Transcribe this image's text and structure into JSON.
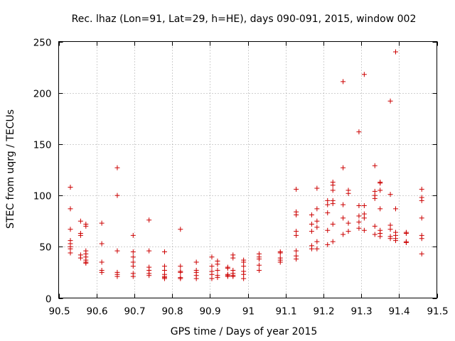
{
  "chart_data": {
    "type": "scatter",
    "title": "Rec. lhaz (Lon=91, Lat=29, h=HE), days 090-091, 2015, window 002",
    "xlabel": "GPS time / Days of year 2015",
    "ylabel": "STEC from uqrg / TECUs",
    "xlim": [
      90.5,
      91.5
    ],
    "ylim": [
      0,
      250
    ],
    "xticks": [
      90.5,
      90.6,
      90.7,
      90.8,
      90.9,
      91,
      91.1,
      91.2,
      91.3,
      91.4,
      91.5
    ],
    "xtick_labels": [
      "90.5",
      "90.6",
      "90.7",
      "90.8",
      "90.9",
      "91",
      "91.1",
      "91.2",
      "91.3",
      "91.4",
      "91.5"
    ],
    "yticks": [
      0,
      50,
      100,
      150,
      200,
      250
    ],
    "ytick_labels": [
      "0",
      "50",
      "100",
      "150",
      "200",
      "250"
    ],
    "grid": true,
    "marker": "+",
    "color": "#cc0000",
    "points": [
      [
        90.531,
        108
      ],
      [
        90.531,
        87
      ],
      [
        90.531,
        67
      ],
      [
        90.531,
        56
      ],
      [
        90.531,
        53
      ],
      [
        90.531,
        50
      ],
      [
        90.531,
        48
      ],
      [
        90.531,
        44
      ],
      [
        90.558,
        75
      ],
      [
        90.558,
        63
      ],
      [
        90.558,
        61
      ],
      [
        90.558,
        42
      ],
      [
        90.558,
        39
      ],
      [
        90.572,
        72
      ],
      [
        90.572,
        70
      ],
      [
        90.572,
        46
      ],
      [
        90.572,
        43
      ],
      [
        90.572,
        40
      ],
      [
        90.572,
        37
      ],
      [
        90.572,
        35
      ],
      [
        90.572,
        34
      ],
      [
        90.614,
        73
      ],
      [
        90.614,
        53
      ],
      [
        90.614,
        35
      ],
      [
        90.614,
        27
      ],
      [
        90.614,
        25
      ],
      [
        90.655,
        127
      ],
      [
        90.655,
        100
      ],
      [
        90.655,
        46
      ],
      [
        90.655,
        25
      ],
      [
        90.655,
        23
      ],
      [
        90.655,
        21
      ],
      [
        90.697,
        61
      ],
      [
        90.697,
        45
      ],
      [
        90.697,
        40
      ],
      [
        90.697,
        35
      ],
      [
        90.697,
        31
      ],
      [
        90.697,
        24
      ],
      [
        90.697,
        21
      ],
      [
        90.739,
        76
      ],
      [
        90.739,
        46
      ],
      [
        90.739,
        30
      ],
      [
        90.739,
        27
      ],
      [
        90.739,
        24
      ],
      [
        90.739,
        22
      ],
      [
        90.78,
        45
      ],
      [
        90.78,
        31
      ],
      [
        90.78,
        27
      ],
      [
        90.78,
        23
      ],
      [
        90.78,
        21
      ],
      [
        90.78,
        20
      ],
      [
        90.78,
        19
      ],
      [
        90.822,
        67
      ],
      [
        90.822,
        31
      ],
      [
        90.822,
        26
      ],
      [
        90.822,
        25
      ],
      [
        90.822,
        20
      ],
      [
        90.822,
        19
      ],
      [
        90.864,
        35
      ],
      [
        90.864,
        27
      ],
      [
        90.864,
        25
      ],
      [
        90.864,
        22
      ],
      [
        90.864,
        19
      ],
      [
        90.905,
        40
      ],
      [
        90.905,
        31
      ],
      [
        90.905,
        26
      ],
      [
        90.905,
        23
      ],
      [
        90.905,
        19
      ],
      [
        90.92,
        36
      ],
      [
        90.92,
        33
      ],
      [
        90.92,
        27
      ],
      [
        90.92,
        22
      ],
      [
        90.92,
        20
      ],
      [
        90.947,
        30
      ],
      [
        90.947,
        29
      ],
      [
        90.947,
        23
      ],
      [
        90.947,
        22
      ],
      [
        90.947,
        21
      ],
      [
        90.961,
        42
      ],
      [
        90.961,
        39
      ],
      [
        90.961,
        27
      ],
      [
        90.961,
        24
      ],
      [
        90.961,
        22
      ],
      [
        90.961,
        21
      ],
      [
        90.989,
        37
      ],
      [
        90.989,
        35
      ],
      [
        90.989,
        31
      ],
      [
        90.989,
        26
      ],
      [
        90.989,
        23
      ],
      [
        90.989,
        19
      ],
      [
        91.03,
        43
      ],
      [
        91.03,
        40
      ],
      [
        91.03,
        38
      ],
      [
        91.03,
        32
      ],
      [
        91.03,
        27
      ],
      [
        91.086,
        45
      ],
      [
        91.086,
        44
      ],
      [
        91.086,
        39
      ],
      [
        91.086,
        37
      ],
      [
        91.086,
        35
      ],
      [
        91.128,
        106
      ],
      [
        91.128,
        84
      ],
      [
        91.128,
        81
      ],
      [
        91.128,
        65
      ],
      [
        91.128,
        61
      ],
      [
        91.128,
        46
      ],
      [
        91.128,
        41
      ],
      [
        91.128,
        38
      ],
      [
        91.169,
        81
      ],
      [
        91.169,
        72
      ],
      [
        91.169,
        65
      ],
      [
        91.169,
        51
      ],
      [
        91.169,
        48
      ],
      [
        91.183,
        107
      ],
      [
        91.183,
        87
      ],
      [
        91.183,
        75
      ],
      [
        91.183,
        69
      ],
      [
        91.183,
        55
      ],
      [
        91.183,
        48
      ],
      [
        91.211,
        95
      ],
      [
        91.211,
        91
      ],
      [
        91.211,
        83
      ],
      [
        91.211,
        66
      ],
      [
        91.211,
        52
      ],
      [
        91.225,
        113
      ],
      [
        91.225,
        110
      ],
      [
        91.225,
        105
      ],
      [
        91.225,
        95
      ],
      [
        91.225,
        92
      ],
      [
        91.225,
        72
      ],
      [
        91.225,
        55
      ],
      [
        91.252,
        211
      ],
      [
        91.252,
        127
      ],
      [
        91.252,
        91
      ],
      [
        91.252,
        78
      ],
      [
        91.252,
        62
      ],
      [
        91.266,
        105
      ],
      [
        91.266,
        102
      ],
      [
        91.266,
        73
      ],
      [
        91.266,
        65
      ],
      [
        91.294,
        162
      ],
      [
        91.294,
        90
      ],
      [
        91.294,
        80
      ],
      [
        91.294,
        74
      ],
      [
        91.294,
        68
      ],
      [
        91.308,
        218
      ],
      [
        91.308,
        90
      ],
      [
        91.308,
        82
      ],
      [
        91.308,
        78
      ],
      [
        91.308,
        66
      ],
      [
        91.336,
        129
      ],
      [
        91.336,
        104
      ],
      [
        91.336,
        100
      ],
      [
        91.336,
        97
      ],
      [
        91.336,
        70
      ],
      [
        91.336,
        62
      ],
      [
        91.35,
        113
      ],
      [
        91.35,
        112
      ],
      [
        91.35,
        105
      ],
      [
        91.35,
        87
      ],
      [
        91.35,
        66
      ],
      [
        91.35,
        63
      ],
      [
        91.35,
        60
      ],
      [
        91.377,
        192
      ],
      [
        91.377,
        101
      ],
      [
        91.377,
        71
      ],
      [
        91.377,
        67
      ],
      [
        91.377,
        60
      ],
      [
        91.377,
        58
      ],
      [
        91.391,
        240
      ],
      [
        91.391,
        87
      ],
      [
        91.391,
        64
      ],
      [
        91.391,
        61
      ],
      [
        91.391,
        58
      ],
      [
        91.391,
        56
      ],
      [
        91.419,
        64
      ],
      [
        91.419,
        63
      ],
      [
        91.419,
        55
      ],
      [
        91.419,
        54
      ],
      [
        91.46,
        106
      ],
      [
        91.46,
        98
      ],
      [
        91.46,
        95
      ],
      [
        91.46,
        78
      ],
      [
        91.46,
        61
      ],
      [
        91.46,
        58
      ],
      [
        91.46,
        43
      ]
    ]
  }
}
